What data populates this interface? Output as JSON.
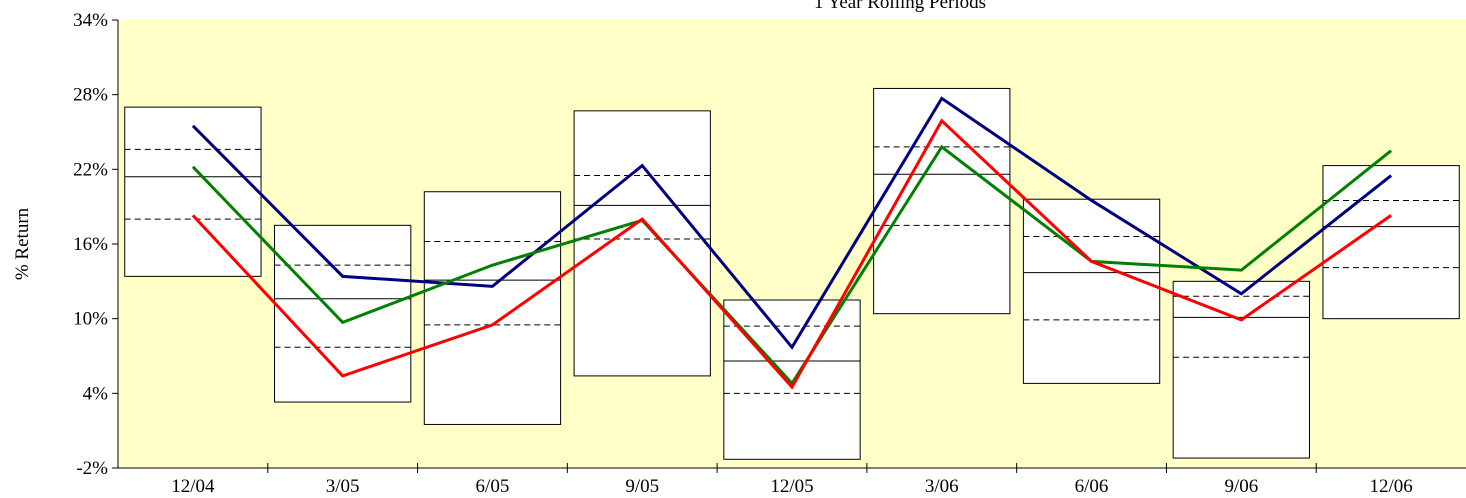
{
  "chart_data": {
    "type": "floating-box-line",
    "title": "1 Year Rolling Periods",
    "y_label": "% Return",
    "categories": [
      "12/04",
      "3/05",
      "6/05",
      "9/05",
      "12/05",
      "3/06",
      "6/06",
      "9/06",
      "12/06"
    ],
    "boxes": {
      "high": [
        27.0,
        17.5,
        20.2,
        26.7,
        11.5,
        28.5,
        19.6,
        13.0,
        22.3
      ],
      "upper": [
        23.6,
        14.3,
        16.2,
        21.5,
        9.4,
        23.8,
        16.6,
        11.8,
        19.5
      ],
      "median": [
        21.4,
        11.6,
        13.1,
        19.1,
        6.6,
        21.6,
        13.7,
        10.1,
        17.4
      ],
      "lower": [
        18.0,
        7.7,
        9.5,
        16.4,
        4.0,
        17.5,
        9.9,
        6.9,
        14.1
      ],
      "low": [
        13.4,
        3.3,
        1.5,
        5.4,
        -1.3,
        10.4,
        4.8,
        -1.2,
        10.0
      ]
    },
    "series": [
      {
        "color": "#000080",
        "values": [
          25.5,
          13.4,
          12.6,
          22.3,
          7.7,
          27.7,
          19.5,
          12.0,
          21.5
        ]
      },
      {
        "color": "#008000",
        "values": [
          22.2,
          9.7,
          14.3,
          17.9,
          4.8,
          23.8,
          14.6,
          13.9,
          23.5
        ]
      },
      {
        "color": "#ff0000",
        "values": [
          18.3,
          5.4,
          9.5,
          18.0,
          4.5,
          25.9,
          14.6,
          9.9,
          18.3
        ]
      }
    ],
    "ylim": [
      -2,
      34
    ],
    "yticks": [
      {
        "value": -2,
        "label": "-2%"
      },
      {
        "value": 4,
        "label": "4%"
      },
      {
        "value": 10,
        "label": "10%"
      },
      {
        "value": 16,
        "label": "16%"
      },
      {
        "value": 22,
        "label": "22%"
      },
      {
        "value": 28,
        "label": "28%"
      },
      {
        "value": 34,
        "label": "34%"
      }
    ],
    "background": "#ffffc8"
  }
}
